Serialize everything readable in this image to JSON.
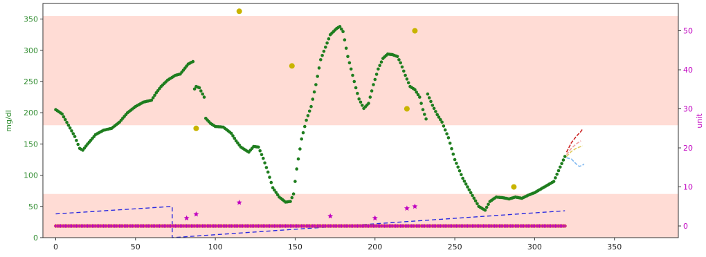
{
  "chart_data": {
    "type": "scatter",
    "ylabel_left": "mg/dl",
    "ylabel_right": "unit",
    "xlim": [
      -8,
      390
    ],
    "ylim_left": [
      0,
      375
    ],
    "ylim_right": [
      -3,
      57
    ],
    "xticks": [
      0,
      50,
      100,
      150,
      200,
      250,
      300,
      350
    ],
    "yticks_left": [
      0,
      50,
      100,
      150,
      200,
      250,
      300,
      350
    ],
    "yticks_right": [
      0,
      10,
      20,
      30,
      40,
      50
    ],
    "bands": [
      {
        "from": 180,
        "to": 355,
        "color": "#ffdcd5"
      },
      {
        "from": 0,
        "to": 70,
        "color": "#ffdcd5"
      }
    ],
    "colors": {
      "glucose": "#1e7d1e",
      "carbs": "#c8b400",
      "insulin": "#c000c0",
      "baseline": "#e8a800",
      "basal": "#2a2ae0",
      "axis_left": "#2e8b2e",
      "axis_right": "#c000c0"
    },
    "glucose_anchors": [
      [
        0,
        205
      ],
      [
        4,
        198
      ],
      [
        8,
        180
      ],
      [
        12,
        162
      ],
      [
        15,
        143
      ],
      [
        17,
        140
      ],
      [
        20,
        150
      ],
      [
        25,
        165
      ],
      [
        30,
        172
      ],
      [
        35,
        175
      ],
      [
        40,
        185
      ],
      [
        45,
        200
      ],
      [
        50,
        210
      ],
      [
        55,
        217
      ],
      [
        60,
        220
      ],
      [
        63,
        232
      ],
      [
        66,
        242
      ],
      [
        70,
        252
      ],
      [
        75,
        260
      ],
      [
        78,
        262
      ],
      [
        79,
        265
      ],
      [
        83,
        278
      ],
      [
        86,
        282
      ],
      [
        86.5,
        236
      ],
      [
        88,
        242
      ],
      [
        90,
        240
      ],
      [
        93,
        225
      ],
      [
        94,
        191
      ],
      [
        97,
        183
      ],
      [
        100,
        178
      ],
      [
        105,
        177
      ],
      [
        110,
        167
      ],
      [
        113,
        155
      ],
      [
        116,
        145
      ],
      [
        119,
        140
      ],
      [
        121,
        137
      ],
      [
        124,
        146
      ],
      [
        127,
        145
      ],
      [
        130,
        127
      ],
      [
        133,
        105
      ],
      [
        136,
        80
      ],
      [
        140,
        65
      ],
      [
        144,
        57
      ],
      [
        147,
        58
      ],
      [
        149,
        70
      ],
      [
        151,
        110
      ],
      [
        154,
        158
      ],
      [
        157,
        188
      ],
      [
        160,
        210
      ],
      [
        163,
        245
      ],
      [
        166,
        285
      ],
      [
        169,
        305
      ],
      [
        172,
        325
      ],
      [
        176,
        335
      ],
      [
        178,
        338
      ],
      [
        180,
        330
      ],
      [
        183,
        290
      ],
      [
        186,
        260
      ],
      [
        188,
        240
      ],
      [
        190,
        222
      ],
      [
        193,
        207
      ],
      [
        196,
        215
      ],
      [
        199,
        245
      ],
      [
        202,
        270
      ],
      [
        205,
        287
      ],
      [
        208,
        294
      ],
      [
        211,
        293
      ],
      [
        214,
        290
      ],
      [
        216,
        280
      ],
      [
        219,
        260
      ],
      [
        222,
        242
      ],
      [
        225,
        237
      ],
      [
        228,
        225
      ],
      [
        230,
        205
      ],
      [
        232,
        190
      ],
      [
        233,
        230
      ],
      [
        236,
        212
      ],
      [
        239,
        197
      ],
      [
        242,
        185
      ],
      [
        246,
        160
      ],
      [
        250,
        125
      ],
      [
        255,
        95
      ],
      [
        260,
        72
      ],
      [
        265,
        50
      ],
      [
        269,
        44
      ],
      [
        272,
        58
      ],
      [
        276,
        65
      ],
      [
        280,
        64
      ],
      [
        284,
        62
      ],
      [
        288,
        65
      ],
      [
        292,
        63
      ],
      [
        296,
        68
      ],
      [
        300,
        72
      ],
      [
        304,
        78
      ],
      [
        308,
        84
      ],
      [
        312,
        90
      ],
      [
        316,
        113
      ],
      [
        319,
        130
      ]
    ],
    "carbs_points": [
      [
        88,
        25
      ],
      [
        115,
        55
      ],
      [
        148,
        41
      ],
      [
        220,
        30
      ],
      [
        225,
        50
      ],
      [
        287,
        10
      ]
    ],
    "insulin_points": [
      [
        82,
        2
      ],
      [
        88,
        3
      ],
      [
        115,
        6
      ],
      [
        172,
        2.5
      ],
      [
        200,
        2
      ],
      [
        220,
        4.5
      ],
      [
        225,
        5
      ]
    ],
    "basal_lines": [
      {
        "points": [
          [
            0,
            38
          ],
          [
            73,
            50
          ],
          [
            73,
            0
          ],
          [
            319,
            43
          ]
        ]
      }
    ],
    "prediction_lines": [
      {
        "color": "#cc2222",
        "points": [
          [
            320,
            137
          ],
          [
            323,
            152
          ],
          [
            326,
            162
          ],
          [
            329,
            170
          ],
          [
            330,
            174
          ]
        ]
      },
      {
        "color": "#f0a0a0",
        "points": [
          [
            320,
            133
          ],
          [
            323,
            143
          ],
          [
            326,
            150
          ],
          [
            329,
            155
          ]
        ]
      },
      {
        "color": "#e0cc60",
        "points": [
          [
            320,
            130
          ],
          [
            323,
            138
          ],
          [
            326,
            143
          ],
          [
            330,
            147
          ]
        ]
      },
      {
        "color": "#7fb8f0",
        "points": [
          [
            320,
            128
          ],
          [
            323,
            126
          ],
          [
            326,
            118
          ],
          [
            328,
            114
          ],
          [
            330,
            116
          ],
          [
            331,
            118
          ]
        ]
      }
    ]
  }
}
